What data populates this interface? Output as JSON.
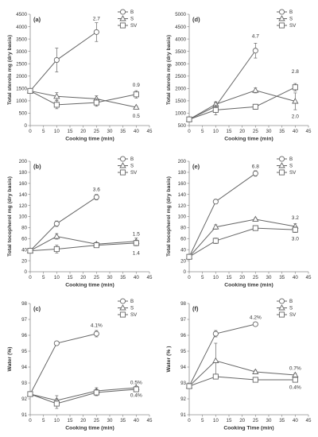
{
  "chart_data": [
    {
      "type": "line",
      "panel_label": "(a)",
      "xlabel": "Cooking time (min)",
      "ylabel": "Total sterols mg (dry basis)",
      "xlim": [
        0,
        45
      ],
      "ylim": [
        0,
        4500
      ],
      "xticks": [
        0,
        5,
        10,
        15,
        20,
        25,
        30,
        35,
        40,
        45
      ],
      "yticks": [
        0,
        500,
        1000,
        1500,
        2000,
        2500,
        3000,
        3500,
        4000,
        4500
      ],
      "grid": false,
      "legend_position": "top-right",
      "series": [
        {
          "name": "B",
          "marker": "circle",
          "x": [
            0,
            10,
            25
          ],
          "y": [
            1400,
            2650,
            3780
          ],
          "err": [
            0,
            480,
            380
          ]
        },
        {
          "name": "S",
          "marker": "triangle",
          "x": [
            0,
            10,
            25,
            40
          ],
          "y": [
            1400,
            1180,
            1080,
            740
          ],
          "err": [
            0,
            150,
            120,
            40
          ]
        },
        {
          "name": "SV",
          "marker": "square",
          "x": [
            0,
            10,
            25,
            40
          ],
          "y": [
            1400,
            840,
            930,
            1260
          ],
          "err": [
            0,
            160,
            150,
            150
          ]
        }
      ],
      "annotations": [
        {
          "text": "2.7",
          "x": 25,
          "y": 4330
        },
        {
          "text": "0.9",
          "x": 40,
          "y": 1650
        },
        {
          "text": "0.5",
          "x": 40,
          "y": 390
        }
      ]
    },
    {
      "type": "line",
      "panel_label": "(d)",
      "xlabel": "Cooking time (min)",
      "ylabel": "Total sterols mg (dry basis)",
      "xlim": [
        0,
        45
      ],
      "ylim": [
        500,
        5000
      ],
      "xticks": [
        0,
        5,
        10,
        15,
        20,
        25,
        30,
        35,
        40,
        45
      ],
      "yticks": [
        500,
        1000,
        1500,
        2000,
        2500,
        3000,
        3500,
        4000,
        4500,
        5000
      ],
      "grid": false,
      "legend_position": "top-right",
      "series": [
        {
          "name": "B",
          "marker": "circle",
          "x": [
            0,
            10,
            25
          ],
          "y": [
            750,
            1280,
            3530
          ],
          "err": [
            0,
            150,
            300
          ]
        },
        {
          "name": "S",
          "marker": "triangle",
          "x": [
            0,
            10,
            25,
            40
          ],
          "y": [
            750,
            1360,
            1920,
            1480
          ],
          "err": [
            0,
            100,
            100,
            340
          ]
        },
        {
          "name": "SV",
          "marker": "square",
          "x": [
            0,
            10,
            25,
            40
          ],
          "y": [
            750,
            1130,
            1260,
            2050
          ],
          "err": [
            0,
            200,
            100,
            150
          ]
        }
      ],
      "annotations": [
        {
          "text": "4.7",
          "x": 25,
          "y": 4120
        },
        {
          "text": "2.8",
          "x": 40,
          "y": 2700
        },
        {
          "text": "2.0",
          "x": 40,
          "y": 880
        }
      ]
    },
    {
      "type": "line",
      "panel_label": "(b)",
      "xlabel": "Cooking time (min)",
      "ylabel": "Total tocopherol mg (dry basis)",
      "xlim": [
        0,
        45
      ],
      "ylim": [
        0,
        200
      ],
      "xticks": [
        0,
        5,
        10,
        15,
        20,
        25,
        30,
        35,
        40,
        45
      ],
      "yticks": [
        0,
        20,
        40,
        60,
        80,
        100,
        120,
        140,
        160,
        180,
        200
      ],
      "grid": false,
      "legend_position": "top-right",
      "series": [
        {
          "name": "B",
          "marker": "circle",
          "x": [
            0,
            10,
            25
          ],
          "y": [
            38,
            87,
            135
          ],
          "err": [
            0,
            5,
            5
          ]
        },
        {
          "name": "S",
          "marker": "triangle",
          "x": [
            0,
            10,
            25,
            40
          ],
          "y": [
            38,
            64,
            50,
            55
          ],
          "err": [
            0,
            5,
            3,
            6
          ]
        },
        {
          "name": "SV",
          "marker": "square",
          "x": [
            0,
            10,
            25,
            40
          ],
          "y": [
            38,
            41,
            48,
            52
          ],
          "err": [
            0,
            7,
            3,
            5
          ]
        }
      ],
      "annotations": [
        {
          "text": "3.6",
          "x": 25,
          "y": 149
        },
        {
          "text": "1.5",
          "x": 40,
          "y": 69
        },
        {
          "text": "1.4",
          "x": 40,
          "y": 34
        }
      ]
    },
    {
      "type": "line",
      "panel_label": "(e)",
      "xlabel": "Cooking time (min)",
      "ylabel": "Total tocopherol mg (dry basis)",
      "xlim": [
        0,
        45
      ],
      "ylim": [
        0,
        200
      ],
      "xticks": [
        0,
        5,
        10,
        15,
        20,
        25,
        30,
        35,
        40,
        45
      ],
      "yticks": [
        0,
        20,
        40,
        60,
        80,
        100,
        120,
        140,
        160,
        180,
        200
      ],
      "grid": false,
      "legend_position": "top-right",
      "series": [
        {
          "name": "B",
          "marker": "circle",
          "x": [
            0,
            10,
            25
          ],
          "y": [
            27,
            127,
            178
          ],
          "err": [
            0,
            4,
            5
          ]
        },
        {
          "name": "S",
          "marker": "triangle",
          "x": [
            0,
            10,
            25,
            40
          ],
          "y": [
            27,
            81,
            95,
            82
          ],
          "err": [
            0,
            4,
            2,
            5
          ]
        },
        {
          "name": "SV",
          "marker": "square",
          "x": [
            0,
            10,
            25,
            40
          ],
          "y": [
            27,
            56,
            79,
            76
          ],
          "err": [
            0,
            5,
            3,
            5
          ]
        }
      ],
      "annotations": [
        {
          "text": "6.8",
          "x": 25,
          "y": 191
        },
        {
          "text": "3.2",
          "x": 40,
          "y": 98
        },
        {
          "text": "3.0",
          "x": 40,
          "y": 60
        }
      ]
    },
    {
      "type": "line",
      "panel_label": "(c)",
      "xlabel": "Cooking time (min)",
      "ylabel": "Water (%)",
      "xlim": [
        0,
        45
      ],
      "ylim": [
        91,
        98
      ],
      "xticks": [
        0,
        5,
        10,
        15,
        20,
        25,
        30,
        35,
        40,
        45
      ],
      "yticks": [
        91,
        92,
        93,
        94,
        95,
        96,
        97,
        98
      ],
      "grid": false,
      "legend_position": "top-right",
      "series": [
        {
          "name": "B",
          "marker": "circle",
          "x": [
            0,
            10,
            25
          ],
          "y": [
            92.3,
            95.5,
            96.1
          ],
          "err": [
            0,
            0,
            0.2
          ]
        },
        {
          "name": "S",
          "marker": "triangle",
          "x": [
            0,
            10,
            25,
            40
          ],
          "y": [
            92.3,
            91.9,
            92.5,
            92.7
          ],
          "err": [
            0,
            0.3,
            0.2,
            0.1
          ]
        },
        {
          "name": "SV",
          "marker": "square",
          "x": [
            0,
            10,
            25,
            40
          ],
          "y": [
            92.3,
            91.7,
            92.4,
            92.6
          ],
          "err": [
            0,
            0.3,
            0.2,
            0.1
          ]
        }
      ],
      "annotations": [
        {
          "text": "4.1%",
          "x": 25,
          "y": 96.65
        },
        {
          "text": "0.5%",
          "x": 40,
          "y": 93.05
        },
        {
          "text": "0.4%",
          "x": 40,
          "y": 92.25
        }
      ]
    },
    {
      "type": "line",
      "panel_label": "(f)",
      "xlabel": "Cooking Time (min)",
      "ylabel": "Water (% )",
      "xlim": [
        0,
        45
      ],
      "ylim": [
        91,
        98
      ],
      "xticks": [
        0,
        5,
        10,
        15,
        20,
        25,
        30,
        35,
        40,
        45
      ],
      "yticks": [
        91,
        92,
        93,
        94,
        95,
        96,
        97,
        98
      ],
      "grid": false,
      "legend_position": "top-right",
      "series": [
        {
          "name": "B",
          "marker": "circle",
          "x": [
            0,
            10,
            25
          ],
          "y": [
            92.8,
            96.1,
            96.7
          ],
          "err": [
            0,
            0.2,
            0.1
          ]
        },
        {
          "name": "S",
          "marker": "triangle",
          "x": [
            0,
            10,
            25,
            40
          ],
          "y": [
            92.8,
            94.4,
            93.7,
            93.5
          ],
          "err": [
            0,
            1.1,
            0.1,
            0.1
          ]
        },
        {
          "name": "SV",
          "marker": "square",
          "x": [
            0,
            10,
            25,
            40
          ],
          "y": [
            92.8,
            93.4,
            93.2,
            93.2
          ],
          "err": [
            0,
            0.1,
            0.1,
            0.1
          ]
        }
      ],
      "annotations": [
        {
          "text": "4.2%",
          "x": 25,
          "y": 97.15
        },
        {
          "text": "0.7%",
          "x": 40,
          "y": 93.95
        },
        {
          "text": "0.4%",
          "x": 40,
          "y": 92.75
        }
      ]
    }
  ]
}
